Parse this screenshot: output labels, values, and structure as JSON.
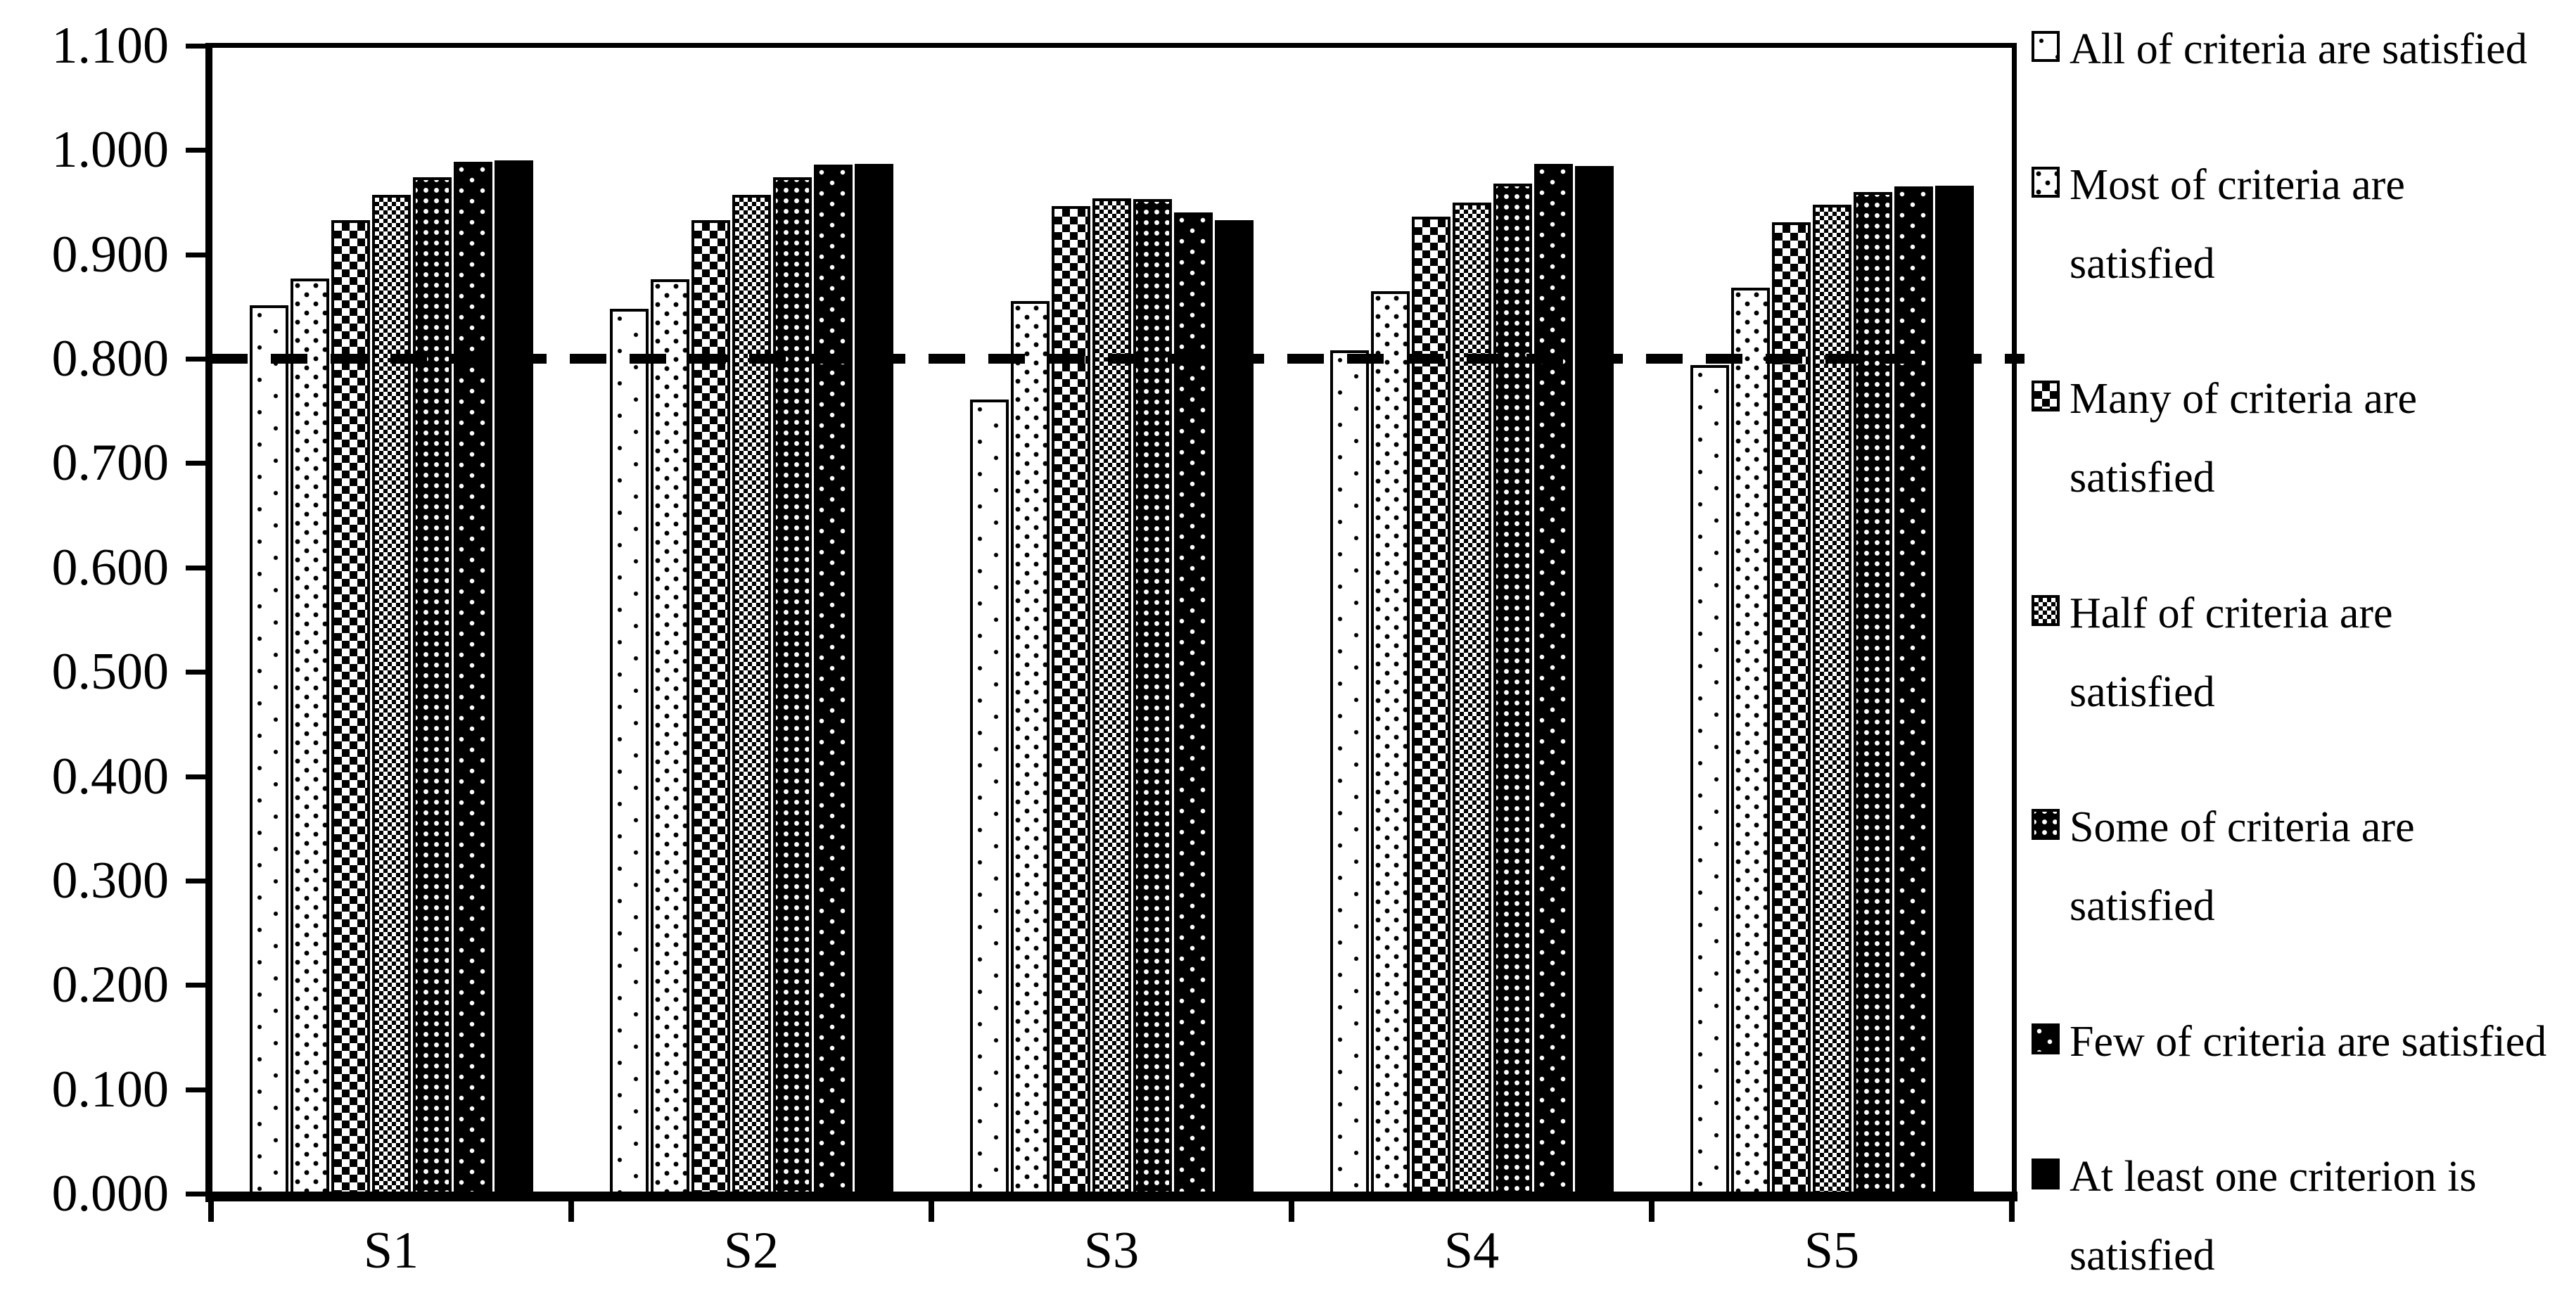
{
  "chart_data": {
    "type": "bar",
    "title": "",
    "xlabel": "",
    "ylabel": "",
    "categories": [
      "S1",
      "S2",
      "S3",
      "S4",
      "S5"
    ],
    "series": [
      {
        "name": "All of criteria are satisfied",
        "pattern": "dots-light",
        "values": [
          0.851,
          0.848,
          0.761,
          0.808,
          0.794
        ]
      },
      {
        "name": "Most of criteria are satisfied",
        "pattern": "dots-medium",
        "values": [
          0.877,
          0.876,
          0.855,
          0.865,
          0.868
        ]
      },
      {
        "name": "Many of criteria are satisfied",
        "pattern": "checker-coarse",
        "values": [
          0.933,
          0.933,
          0.946,
          0.936,
          0.931
        ]
      },
      {
        "name": "Half of criteria are satisfied",
        "pattern": "checker-fine",
        "values": [
          0.957,
          0.957,
          0.954,
          0.95,
          0.948
        ]
      },
      {
        "name": "Some of criteria are satisfied",
        "pattern": "grid-dots-dark",
        "values": [
          0.974,
          0.974,
          0.953,
          0.968,
          0.96
        ]
      },
      {
        "name": "Few of criteria are satisfied",
        "pattern": "sparse-dots-dark",
        "values": [
          0.989,
          0.986,
          0.94,
          0.987,
          0.965
        ]
      },
      {
        "name": "At least one criterion is satisfied",
        "pattern": "solid-black",
        "values": [
          0.99,
          0.987,
          0.933,
          0.985,
          0.966
        ]
      }
    ],
    "ylim": [
      0,
      1.1
    ],
    "ytick_step": 0.1,
    "ytick_labels": [
      "0.000",
      "0.100",
      "0.200",
      "0.300",
      "0.400",
      "0.500",
      "0.600",
      "0.700",
      "0.800",
      "0.900",
      "1.000",
      "1.100"
    ],
    "reference_line": {
      "value": 0.8,
      "style": "dashed",
      "color": "#000000"
    },
    "legend_position": "right",
    "grid": false,
    "colors": {
      "foreground": "#000000",
      "background": "#ffffff"
    }
  }
}
